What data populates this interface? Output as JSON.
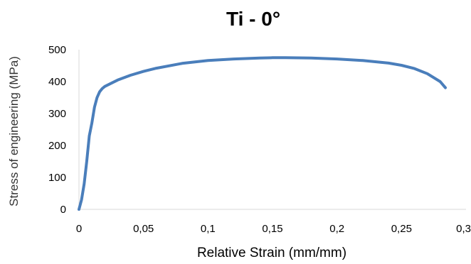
{
  "chart_data": {
    "type": "line",
    "title": "Ti - 0°",
    "xlabel": "Relative Strain (mm/mm)",
    "ylabel": "Stress of engineering (MPa)",
    "xlim": [
      0,
      0.3
    ],
    "ylim": [
      0,
      500
    ],
    "x_ticks": [
      "0",
      "0,05",
      "0,1",
      "0,15",
      "0,2",
      "0,25",
      "0,3"
    ],
    "y_ticks": [
      "0",
      "100",
      "200",
      "300",
      "400",
      "500"
    ],
    "grid": false,
    "legend": "none",
    "series": [
      {
        "color": "#4a7ebb",
        "x": [
          0,
          0.002,
          0.004,
          0.006,
          0.008,
          0.01,
          0.012,
          0.014,
          0.016,
          0.018,
          0.02,
          0.025,
          0.03,
          0.04,
          0.05,
          0.06,
          0.08,
          0.1,
          0.12,
          0.14,
          0.15,
          0.16,
          0.18,
          0.2,
          0.22,
          0.24,
          0.25,
          0.26,
          0.27,
          0.28,
          0.284
        ],
        "y": [
          0,
          30,
          80,
          150,
          230,
          270,
          320,
          350,
          368,
          378,
          385,
          395,
          405,
          420,
          432,
          442,
          457,
          466,
          471,
          474,
          475,
          475,
          474,
          471,
          466,
          458,
          451,
          441,
          425,
          400,
          381
        ]
      }
    ]
  }
}
